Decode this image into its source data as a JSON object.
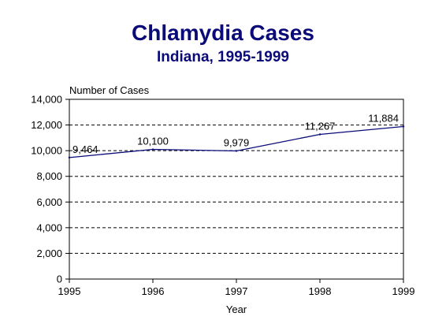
{
  "chart_data": {
    "type": "line",
    "title": "Chlamydia Cases",
    "subtitle": "Indiana, 1995-1999",
    "xlabel": "Year",
    "ylabel": "Number of Cases",
    "x": [
      1995,
      1996,
      1997,
      1998,
      1999
    ],
    "x_ticks": [
      "1995",
      "1996",
      "1997",
      "1998",
      "1999"
    ],
    "y_ticks": [
      "0",
      "2,000",
      "4,000",
      "6,000",
      "8,000",
      "10,000",
      "12,000",
      "14,000"
    ],
    "ylim": [
      0,
      14000
    ],
    "series": [
      {
        "values": [
          9464,
          10100,
          9979,
          11267,
          11884
        ],
        "labels": [
          "9,464",
          "10,100",
          "9,979",
          "11,267",
          "11,884"
        ],
        "color": "#0a0a78"
      }
    ],
    "grid": "horizontal dashed",
    "legend": "none"
  }
}
